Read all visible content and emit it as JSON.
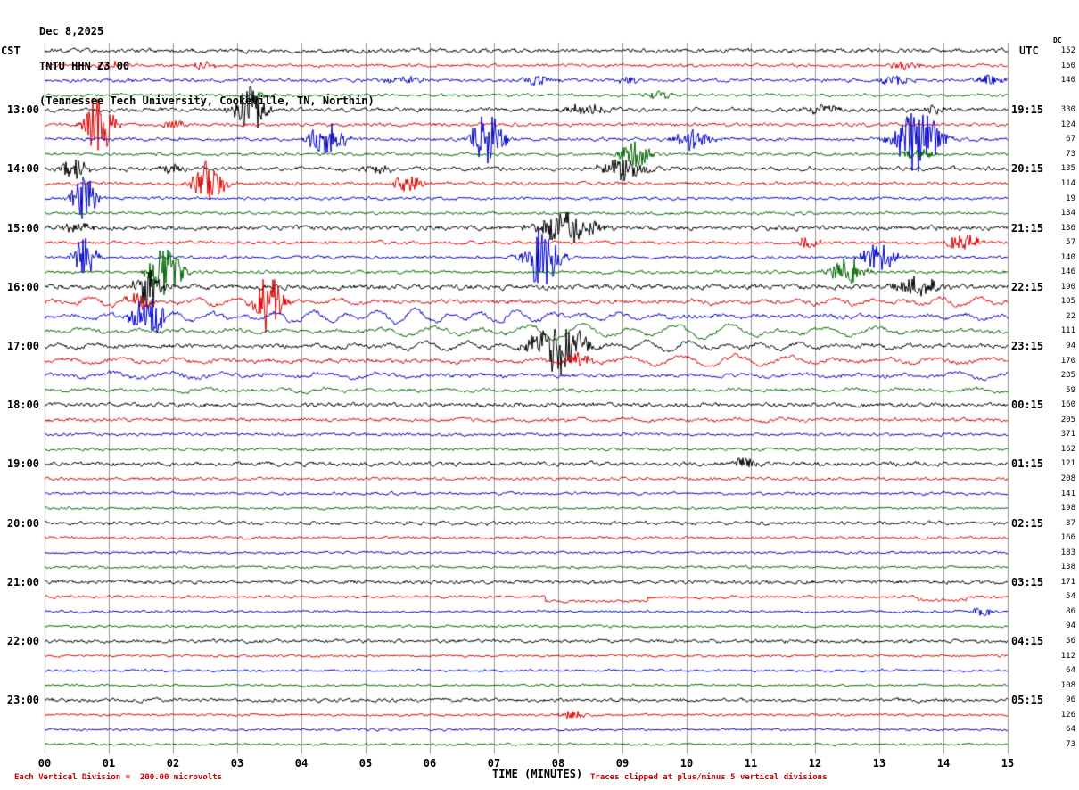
{
  "header": {
    "date": "Dec 8,2025",
    "station": "TNTU HHN Z3 00",
    "description": "(Tennessee Tech University, Cookeville, TN, Northin)",
    "left_tz": "CST",
    "right_tz": "UTC",
    "dc_header": "DC"
  },
  "footer": {
    "x_title": "TIME (MINUTES)",
    "scale_note": "Each Vertical Division =  200.00 microvolts",
    "clip_note": "Traces clipped at plus/minus 5 vertical divisions"
  },
  "chart_data": {
    "type": "line",
    "kind": "seismogram-helicorder",
    "title": "TNTU HHN Z3 00 (Tennessee Tech University, Cookeville, TN, Northin)",
    "date": "Dec 8,2025",
    "minutes_per_line": 15,
    "x_axis": {
      "label": "TIME (MINUTES)",
      "range": [
        0,
        15
      ],
      "ticks": [
        "00",
        "01",
        "02",
        "03",
        "04",
        "05",
        "06",
        "07",
        "08",
        "09",
        "10",
        "11",
        "12",
        "13",
        "14",
        "15"
      ],
      "grid": true
    },
    "trace_colors": {
      "black": "#000000",
      "red": "#dd0000",
      "blue": "#0000cc",
      "green": "#006600"
    },
    "rows": [
      {
        "color": "black",
        "dc": "152"
      },
      {
        "color": "red",
        "dc": "150"
      },
      {
        "color": "blue",
        "dc": "140"
      },
      {
        "color": "green"
      },
      {
        "color": "black",
        "cst": "13:00",
        "utc": "19:15",
        "dc": "330"
      },
      {
        "color": "red",
        "dc": "124"
      },
      {
        "color": "blue",
        "dc": "67"
      },
      {
        "color": "green",
        "dc": "73"
      },
      {
        "color": "black",
        "cst": "14:00",
        "utc": "20:15",
        "dc": "135"
      },
      {
        "color": "red",
        "dc": "114"
      },
      {
        "color": "blue",
        "dc": "19"
      },
      {
        "color": "green",
        "dc": "134"
      },
      {
        "color": "black",
        "cst": "15:00",
        "utc": "21:15",
        "dc": "136"
      },
      {
        "color": "red",
        "dc": "57"
      },
      {
        "color": "blue",
        "dc": "140"
      },
      {
        "color": "green",
        "dc": "146"
      },
      {
        "color": "black",
        "cst": "16:00",
        "utc": "22:15",
        "dc": "190"
      },
      {
        "color": "red",
        "dc": "105"
      },
      {
        "color": "blue",
        "dc": "22"
      },
      {
        "color": "green",
        "dc": "111"
      },
      {
        "color": "black",
        "cst": "17:00",
        "utc": "23:15",
        "dc": "94"
      },
      {
        "color": "red",
        "dc": "170"
      },
      {
        "color": "blue",
        "dc": "235"
      },
      {
        "color": "green",
        "dc": "59"
      },
      {
        "color": "black",
        "cst": "18:00",
        "utc": "00:15",
        "dc": "160"
      },
      {
        "color": "red",
        "dc": "205"
      },
      {
        "color": "blue",
        "dc": "371"
      },
      {
        "color": "green",
        "dc": "162"
      },
      {
        "color": "black",
        "cst": "19:00",
        "utc": "01:15",
        "dc": "121"
      },
      {
        "color": "red",
        "dc": "208"
      },
      {
        "color": "blue",
        "dc": "141"
      },
      {
        "color": "green",
        "dc": "198"
      },
      {
        "color": "black",
        "cst": "20:00",
        "utc": "02:15",
        "dc": "37"
      },
      {
        "color": "red",
        "dc": "166"
      },
      {
        "color": "blue",
        "dc": "183"
      },
      {
        "color": "green",
        "dc": "138"
      },
      {
        "color": "black",
        "cst": "21:00",
        "utc": "03:15",
        "dc": "171"
      },
      {
        "color": "red",
        "dc": "54"
      },
      {
        "color": "blue",
        "dc": "86"
      },
      {
        "color": "green",
        "dc": "94"
      },
      {
        "color": "black",
        "cst": "22:00",
        "utc": "04:15",
        "dc": "56"
      },
      {
        "color": "red",
        "dc": "112"
      },
      {
        "color": "blue",
        "dc": "64"
      },
      {
        "color": "green",
        "dc": "108"
      },
      {
        "color": "black",
        "cst": "23:00",
        "utc": "05:15",
        "dc": "96"
      },
      {
        "color": "red",
        "dc": "126"
      },
      {
        "color": "blue",
        "dc": "64"
      },
      {
        "color": "green",
        "dc": "73"
      }
    ],
    "noise_amp": [
      2.2,
      1.6,
      1.8,
      1.5,
      2.2,
      1.8,
      1.8,
      1.6,
      2.2,
      1.8,
      1.5,
      1.4,
      2.4,
      1.7,
      1.6,
      1.6,
      2.6,
      2.2,
      2.2,
      2.0,
      2.2,
      2.2,
      2.0,
      1.8,
      2.2,
      1.8,
      1.5,
      1.5,
      2.2,
      1.6,
      1.4,
      1.3,
      2.0,
      1.5,
      1.3,
      1.3,
      2.0,
      1.4,
      1.2,
      1.2,
      1.8,
      1.3,
      1.2,
      1.2,
      1.8,
      1.3,
      1.2,
      1.2
    ],
    "wave_rows": {
      "17": 3,
      "18": 5,
      "19": 6,
      "20": 4,
      "21": 4,
      "22": 2.5,
      "23": 1.5,
      "25": 1.2
    },
    "steps": {
      "37": [
        {
          "t": 7.8,
          "d": -5
        },
        {
          "t": 9.4,
          "d": 4
        },
        {
          "t": 10.6,
          "d": 1
        },
        {
          "t": 13.6,
          "d": -4
        },
        {
          "t": 14.35,
          "d": 4
        }
      ]
    },
    "events": [
      {
        "row": 1,
        "minute": 1.0,
        "peak": 5,
        "width": 0.3
      },
      {
        "row": 1,
        "minute": 2.5,
        "peak": 4,
        "width": 0.3
      },
      {
        "row": 1,
        "minute": 13.4,
        "peak": 5,
        "width": 0.4
      },
      {
        "row": 2,
        "minute": 5.6,
        "peak": 5,
        "width": 0.5
      },
      {
        "row": 2,
        "minute": 7.7,
        "peak": 6,
        "width": 0.3
      },
      {
        "row": 2,
        "minute": 9.1,
        "peak": 4,
        "width": 0.3
      },
      {
        "row": 2,
        "minute": 13.2,
        "peak": 5,
        "width": 0.4
      },
      {
        "row": 2,
        "minute": 14.7,
        "peak": 7,
        "width": 0.3
      },
      {
        "row": 3,
        "minute": 3.4,
        "peak": 4,
        "width": 0.3
      },
      {
        "row": 3,
        "minute": 9.6,
        "peak": 4,
        "width": 0.4
      },
      {
        "row": 4,
        "minute": 3.2,
        "peak": 30,
        "width": 0.35
      },
      {
        "row": 4,
        "minute": 8.4,
        "peak": 6,
        "width": 0.5
      },
      {
        "row": 4,
        "minute": 12.1,
        "peak": 5,
        "width": 0.4
      },
      {
        "row": 4,
        "minute": 13.9,
        "peak": 6,
        "width": 0.3
      },
      {
        "row": 5,
        "minute": 0.85,
        "peak": 42,
        "width": 0.3
      },
      {
        "row": 5,
        "minute": 2.0,
        "peak": 6,
        "width": 0.3
      },
      {
        "row": 6,
        "minute": 4.4,
        "peak": 18,
        "width": 0.45
      },
      {
        "row": 6,
        "minute": 6.9,
        "peak": 32,
        "width": 0.35
      },
      {
        "row": 6,
        "minute": 10.1,
        "peak": 12,
        "width": 0.4
      },
      {
        "row": 6,
        "minute": 13.6,
        "peak": 38,
        "width": 0.5
      },
      {
        "row": 7,
        "minute": 9.2,
        "peak": 16,
        "width": 0.4
      },
      {
        "row": 7,
        "minute": 13.6,
        "peak": 6,
        "width": 0.4
      },
      {
        "row": 8,
        "minute": 0.45,
        "peak": 12,
        "width": 0.3
      },
      {
        "row": 8,
        "minute": 2.0,
        "peak": 5,
        "width": 0.3
      },
      {
        "row": 8,
        "minute": 5.2,
        "peak": 5,
        "width": 0.4
      },
      {
        "row": 8,
        "minute": 9.0,
        "peak": 13,
        "width": 0.5
      },
      {
        "row": 9,
        "minute": 2.55,
        "peak": 26,
        "width": 0.35
      },
      {
        "row": 9,
        "minute": 5.7,
        "peak": 9,
        "width": 0.4
      },
      {
        "row": 10,
        "minute": 0.62,
        "peak": 24,
        "width": 0.3
      },
      {
        "row": 12,
        "minute": 0.5,
        "peak": 5,
        "width": 0.4
      },
      {
        "row": 12,
        "minute": 8.1,
        "peak": 18,
        "width": 0.7
      },
      {
        "row": 13,
        "minute": 11.9,
        "peak": 7,
        "width": 0.3
      },
      {
        "row": 13,
        "minute": 14.3,
        "peak": 10,
        "width": 0.4
      },
      {
        "row": 14,
        "minute": 0.62,
        "peak": 22,
        "width": 0.3
      },
      {
        "row": 14,
        "minute": 7.75,
        "peak": 36,
        "width": 0.4
      },
      {
        "row": 14,
        "minute": 13.0,
        "peak": 16,
        "width": 0.4
      },
      {
        "row": 15,
        "minute": 1.9,
        "peak": 30,
        "width": 0.4
      },
      {
        "row": 15,
        "minute": 12.5,
        "peak": 16,
        "width": 0.4
      },
      {
        "row": 16,
        "minute": 1.62,
        "peak": 28,
        "width": 0.3
      },
      {
        "row": 16,
        "minute": 13.6,
        "peak": 12,
        "width": 0.5
      },
      {
        "row": 17,
        "minute": 1.5,
        "peak": 8,
        "width": 0.3
      },
      {
        "row": 17,
        "minute": 3.5,
        "peak": 38,
        "width": 0.3
      },
      {
        "row": 18,
        "minute": 1.62,
        "peak": 26,
        "width": 0.4
      },
      {
        "row": 20,
        "minute": 8.0,
        "peak": 26,
        "width": 0.6
      },
      {
        "row": 21,
        "minute": 8.3,
        "peak": 8,
        "width": 0.3
      },
      {
        "row": 28,
        "minute": 10.9,
        "peak": 7,
        "width": 0.25
      },
      {
        "row": 38,
        "minute": 14.6,
        "peak": 6,
        "width": 0.25
      },
      {
        "row": 45,
        "minute": 8.2,
        "peak": 6,
        "width": 0.3
      }
    ],
    "clip_divisions": 5,
    "microvolts_per_division": "200.00",
    "grid_color": "#999999"
  }
}
